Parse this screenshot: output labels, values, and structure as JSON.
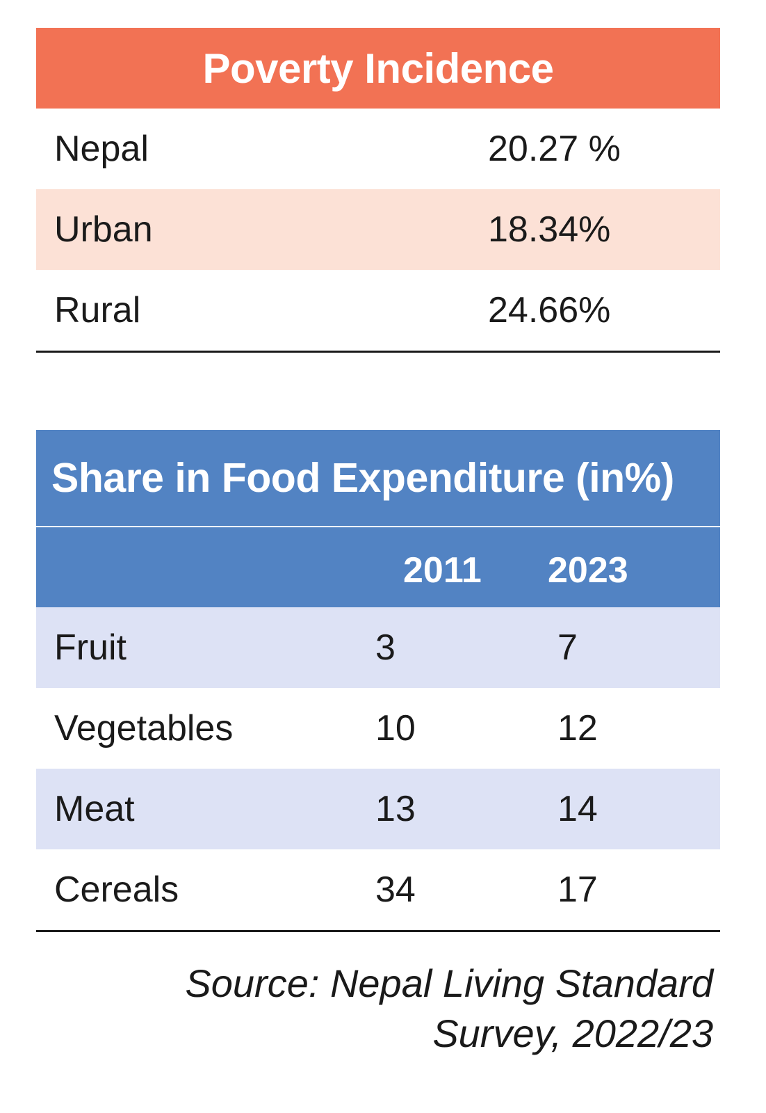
{
  "poverty": {
    "title": "Poverty Incidence",
    "rows": [
      {
        "label": "Nepal",
        "value": "20.27 %"
      },
      {
        "label": "Urban",
        "value": "18.34%"
      },
      {
        "label": "Rural",
        "value": "24.66%"
      }
    ]
  },
  "food": {
    "title": "Share in Food Expenditure (in%)",
    "columns": [
      "",
      "2011",
      "2023"
    ],
    "rows": [
      {
        "label": "Fruit",
        "y2011": "3",
        "y2023": "7"
      },
      {
        "label": "Vegetables",
        "y2011": "10",
        "y2023": "12"
      },
      {
        "label": "Meat",
        "y2011": "13",
        "y2023": "14"
      },
      {
        "label": "Cereals",
        "y2011": "34",
        "y2023": "17"
      }
    ]
  },
  "source": {
    "line1": "Source: Nepal Living Standard",
    "line2": "Survey, 2022/23"
  },
  "colors": {
    "poverty_header": "#f27254",
    "poverty_stripe": "#fce1d6",
    "food_header": "#5283c3",
    "food_stripe": "#dde2f5"
  }
}
